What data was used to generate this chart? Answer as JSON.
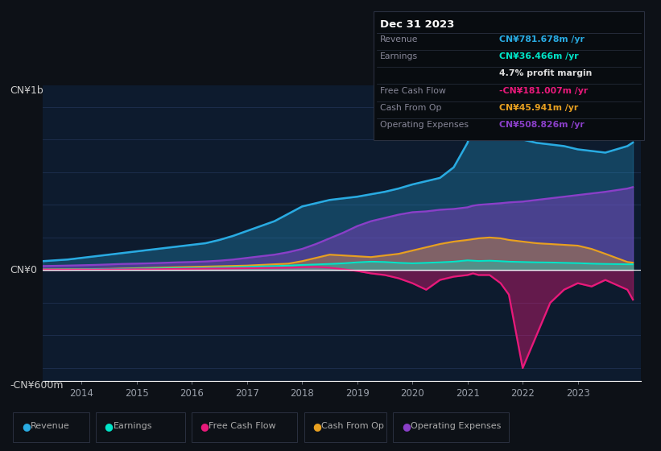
{
  "bg_color": "#0d1117",
  "plot_bg_color": "#0d1b2e",
  "colors": {
    "revenue": "#29abe2",
    "earnings": "#00e5c8",
    "fcf": "#e8197a",
    "cashfromop": "#e8a020",
    "opex": "#8a3fc8"
  },
  "legend": [
    "Revenue",
    "Earnings",
    "Free Cash Flow",
    "Cash From Op",
    "Operating Expenses"
  ],
  "legend_colors": [
    "#29abe2",
    "#00e5c8",
    "#e8197a",
    "#e8a020",
    "#8a3fc8"
  ],
  "ylabel_top": "CN¥1b",
  "ylabel_bottom": "-CN¥600m",
  "ylabel_zero": "CN¥0",
  "info_title": "Dec 31 2023",
  "info_rows": [
    {
      "label": "Revenue",
      "value": "CN¥781.678m /yr",
      "lcolor": "#888899",
      "vcolor": "#29abe2"
    },
    {
      "label": "Earnings",
      "value": "CN¥36.466m /yr",
      "lcolor": "#888899",
      "vcolor": "#00e5c8"
    },
    {
      "label": "",
      "value": "4.7% profit margin",
      "lcolor": "#888899",
      "vcolor": "#dddddd"
    },
    {
      "label": "Free Cash Flow",
      "value": "-CN¥181.007m /yr",
      "lcolor": "#888899",
      "vcolor": "#e8197a"
    },
    {
      "label": "Cash From Op",
      "value": "CN¥45.941m /yr",
      "lcolor": "#888899",
      "vcolor": "#e8a020"
    },
    {
      "label": "Operating Expenses",
      "value": "CN¥508.826m /yr",
      "lcolor": "#888899",
      "vcolor": "#8a3fc8"
    }
  ],
  "years": [
    2013.3,
    2013.75,
    2014.0,
    2014.25,
    2014.5,
    2014.75,
    2015.0,
    2015.25,
    2015.5,
    2015.75,
    2016.0,
    2016.25,
    2016.5,
    2016.75,
    2017.0,
    2017.25,
    2017.5,
    2017.75,
    2018.0,
    2018.25,
    2018.5,
    2018.75,
    2019.0,
    2019.25,
    2019.5,
    2019.75,
    2020.0,
    2020.25,
    2020.5,
    2020.75,
    2021.0,
    2021.1,
    2021.2,
    2021.4,
    2021.6,
    2021.75,
    2022.0,
    2022.25,
    2022.5,
    2022.75,
    2023.0,
    2023.25,
    2023.5,
    2023.9,
    2024.0
  ],
  "revenue": [
    55,
    65,
    75,
    85,
    95,
    105,
    115,
    125,
    135,
    145,
    155,
    165,
    185,
    210,
    240,
    270,
    300,
    345,
    390,
    410,
    430,
    440,
    450,
    465,
    480,
    500,
    525,
    545,
    565,
    630,
    780,
    900,
    970,
    1010,
    900,
    840,
    800,
    780,
    770,
    760,
    740,
    730,
    720,
    760,
    782
  ],
  "earnings": [
    3,
    4,
    5,
    6,
    7,
    8,
    9,
    10,
    11,
    12,
    13,
    14,
    16,
    18,
    20,
    23,
    25,
    28,
    32,
    35,
    38,
    42,
    48,
    52,
    50,
    45,
    42,
    45,
    48,
    52,
    60,
    58,
    56,
    58,
    55,
    52,
    50,
    48,
    47,
    45,
    43,
    40,
    38,
    36,
    36
  ],
  "fcf": [
    2,
    2,
    3,
    3,
    4,
    4,
    5,
    5,
    6,
    7,
    8,
    9,
    10,
    11,
    12,
    13,
    14,
    15,
    18,
    20,
    15,
    5,
    -5,
    -20,
    -30,
    -50,
    -80,
    -120,
    -60,
    -40,
    -30,
    -20,
    -30,
    -30,
    -80,
    -150,
    -600,
    -400,
    -200,
    -120,
    -80,
    -100,
    -60,
    -120,
    -181
  ],
  "cashfromop": [
    4,
    5,
    6,
    7,
    8,
    10,
    12,
    14,
    16,
    18,
    20,
    22,
    24,
    26,
    28,
    32,
    36,
    40,
    55,
    75,
    95,
    90,
    85,
    80,
    90,
    100,
    120,
    140,
    160,
    175,
    185,
    190,
    195,
    200,
    195,
    185,
    175,
    165,
    160,
    155,
    150,
    130,
    100,
    50,
    46
  ],
  "opex": [
    25,
    28,
    30,
    32,
    35,
    38,
    40,
    42,
    45,
    48,
    50,
    53,
    58,
    65,
    75,
    85,
    95,
    110,
    130,
    160,
    195,
    230,
    270,
    300,
    320,
    340,
    355,
    360,
    370,
    375,
    385,
    395,
    400,
    405,
    410,
    415,
    420,
    430,
    440,
    450,
    460,
    470,
    480,
    500,
    509
  ]
}
